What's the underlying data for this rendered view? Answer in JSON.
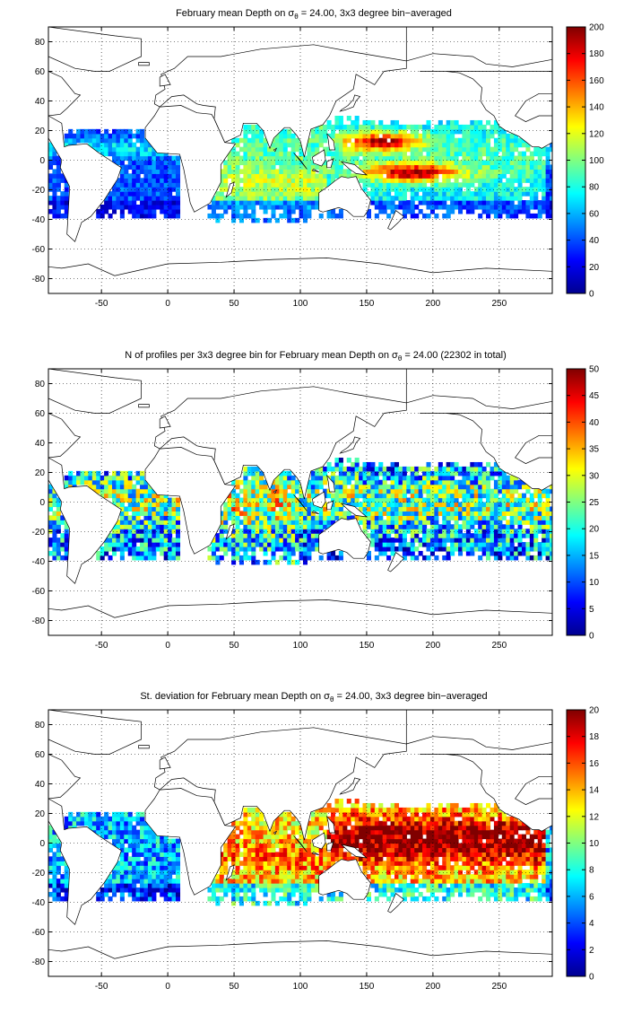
{
  "colors": {
    "colormap": [
      "#00008f",
      "#0000ff",
      "#0080ff",
      "#00ffff",
      "#80ff80",
      "#ffff00",
      "#ff8000",
      "#ff0000",
      "#800000"
    ],
    "frame": "#000000",
    "grid": "#000000",
    "land": "#ffffff",
    "coast": "#000000"
  },
  "map": {
    "x_ticks": [
      "-50",
      "0",
      "50",
      "100",
      "150",
      "200",
      "250"
    ],
    "x_tick_values": [
      -50,
      0,
      50,
      100,
      150,
      200,
      250
    ],
    "y_ticks": [
      "80",
      "60",
      "40",
      "20",
      "0",
      "-20",
      "-40",
      "-60",
      "-80"
    ],
    "y_tick_values": [
      80,
      60,
      40,
      20,
      0,
      -20,
      -40,
      -60,
      -80
    ],
    "lon_range": [
      -90,
      290
    ],
    "lat_range": [
      -90,
      90
    ],
    "grid": true,
    "grid_style": "dotted"
  },
  "panels": [
    {
      "id": "mean-depth",
      "title_part1": "February mean Depth on ",
      "title_sigma": "σ",
      "title_sub": "θ",
      "title_part2": " = 24.00, 3x3 degree bin−averaged",
      "colorbar_ticks": [
        "200",
        "180",
        "160",
        "140",
        "120",
        "100",
        "80",
        "60",
        "40",
        "20",
        "0"
      ],
      "colorbar_values": [
        200,
        180,
        160,
        140,
        120,
        100,
        80,
        60,
        40,
        20,
        0
      ],
      "range": [
        0,
        200
      ]
    },
    {
      "id": "n-profiles",
      "title_part1": "N of profiles per 3x3 degree bin for February mean Depth on ",
      "title_sigma": "σ",
      "title_sub": "θ",
      "title_part2": " = 24.00 (22302 in total)",
      "colorbar_ticks": [
        "50",
        "45",
        "40",
        "35",
        "30",
        "25",
        "20",
        "15",
        "10",
        "5",
        "0"
      ],
      "colorbar_values": [
        50,
        45,
        40,
        35,
        30,
        25,
        20,
        15,
        10,
        5,
        0
      ],
      "range": [
        0,
        50
      ]
    },
    {
      "id": "std-dev",
      "title_part1": "St. deviation for February mean Depth on ",
      "title_sigma": "σ",
      "title_sub": "θ",
      "title_part2": " = 24.00, 3x3 degree bin−averaged",
      "colorbar_ticks": [
        "20",
        "18",
        "16",
        "14",
        "12",
        "10",
        "8",
        "6",
        "4",
        "2",
        "0"
      ],
      "colorbar_values": [
        20,
        18,
        16,
        14,
        12,
        10,
        8,
        6,
        4,
        2,
        0
      ],
      "range": [
        0,
        20
      ]
    }
  ]
}
